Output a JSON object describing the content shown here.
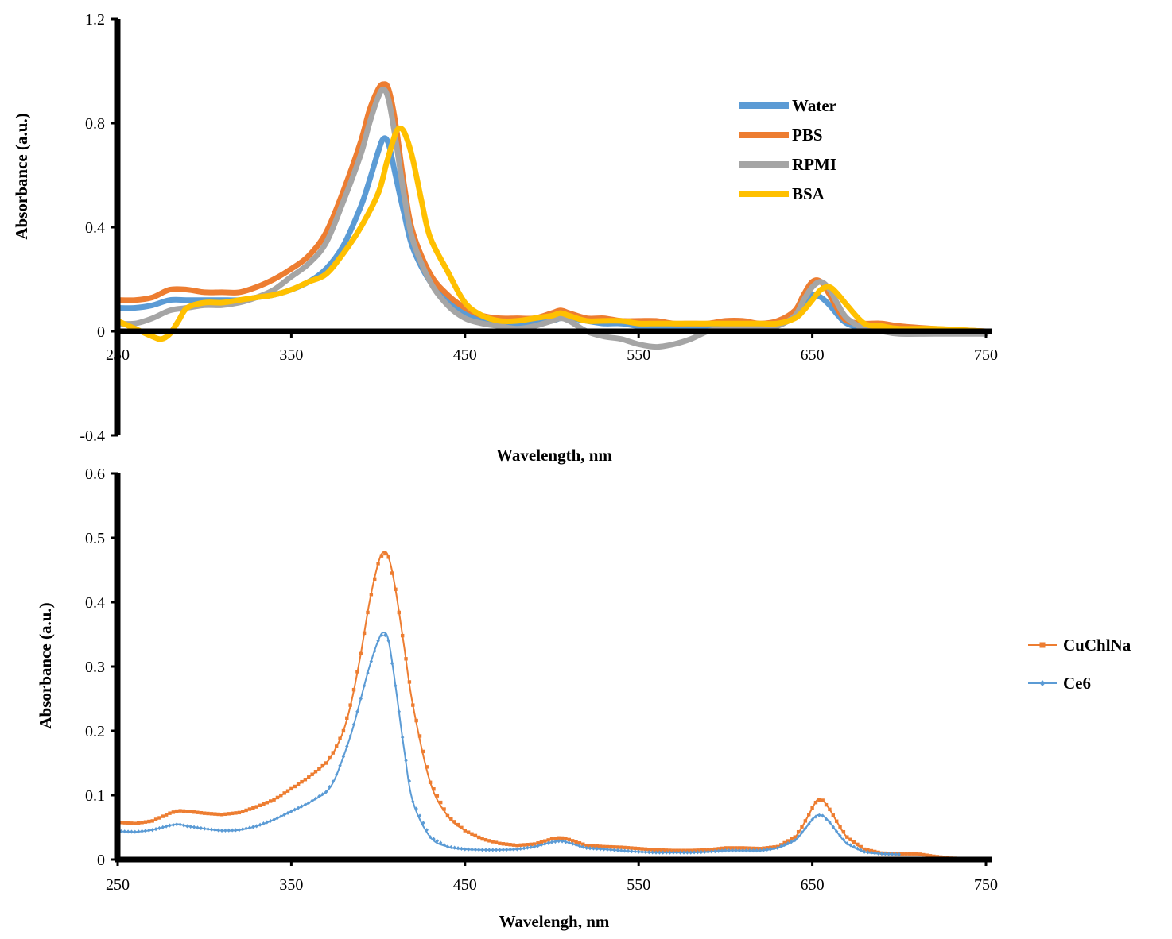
{
  "chart_data": [
    {
      "type": "line",
      "title": "",
      "xlabel": "Wavelength, nm",
      "ylabel": "Absorbance (a.u.)",
      "xlim": [
        250,
        750
      ],
      "ylim": [
        -0.4,
        1.2
      ],
      "xticks": [
        "250",
        "350",
        "450",
        "550",
        "650",
        "750"
      ],
      "yticks": [
        "1.2",
        "0.8",
        "0.4",
        "0",
        "-0.4"
      ],
      "grid": false,
      "legend_position": "top-right",
      "series": [
        {
          "name": "Water",
          "color": "#5B9BD5",
          "x": [
            250,
            260,
            270,
            280,
            290,
            300,
            310,
            320,
            330,
            340,
            350,
            360,
            370,
            380,
            390,
            395,
            400,
            403,
            406,
            410,
            415,
            420,
            430,
            440,
            450,
            460,
            470,
            480,
            490,
            500,
            505,
            510,
            520,
            530,
            540,
            550,
            560,
            570,
            580,
            590,
            600,
            610,
            620,
            630,
            640,
            645,
            650,
            655,
            660,
            665,
            670,
            680,
            690,
            700,
            720,
            750
          ],
          "y": [
            0.09,
            0.09,
            0.1,
            0.12,
            0.12,
            0.12,
            0.12,
            0.12,
            0.13,
            0.14,
            0.16,
            0.19,
            0.24,
            0.33,
            0.48,
            0.58,
            0.69,
            0.74,
            0.72,
            0.6,
            0.45,
            0.32,
            0.19,
            0.12,
            0.07,
            0.05,
            0.04,
            0.03,
            0.03,
            0.04,
            0.05,
            0.05,
            0.04,
            0.03,
            0.03,
            0.02,
            0.02,
            0.02,
            0.02,
            0.02,
            0.02,
            0.02,
            0.02,
            0.03,
            0.06,
            0.1,
            0.14,
            0.13,
            0.1,
            0.06,
            0.03,
            0.01,
            0.01,
            0.0,
            0.0,
            0.0
          ]
        },
        {
          "name": "PBS",
          "color": "#ED7D31",
          "x": [
            250,
            260,
            270,
            280,
            290,
            300,
            310,
            320,
            330,
            340,
            350,
            360,
            370,
            380,
            390,
            395,
            400,
            403,
            406,
            410,
            415,
            420,
            430,
            440,
            450,
            460,
            470,
            480,
            490,
            500,
            505,
            510,
            520,
            530,
            540,
            550,
            560,
            570,
            580,
            590,
            600,
            610,
            620,
            630,
            640,
            645,
            650,
            655,
            660,
            665,
            670,
            680,
            690,
            700,
            720,
            750
          ],
          "y": [
            0.12,
            0.12,
            0.13,
            0.16,
            0.16,
            0.15,
            0.15,
            0.15,
            0.17,
            0.2,
            0.24,
            0.29,
            0.38,
            0.54,
            0.73,
            0.85,
            0.93,
            0.95,
            0.93,
            0.8,
            0.56,
            0.38,
            0.22,
            0.14,
            0.09,
            0.06,
            0.05,
            0.05,
            0.05,
            0.07,
            0.08,
            0.07,
            0.05,
            0.05,
            0.04,
            0.04,
            0.04,
            0.03,
            0.03,
            0.03,
            0.04,
            0.04,
            0.03,
            0.04,
            0.08,
            0.14,
            0.19,
            0.19,
            0.14,
            0.08,
            0.04,
            0.03,
            0.03,
            0.02,
            0.01,
            0.0
          ]
        },
        {
          "name": "RPMI",
          "color": "#A5A5A5",
          "x": [
            250,
            260,
            270,
            280,
            290,
            300,
            310,
            320,
            330,
            340,
            350,
            360,
            370,
            380,
            390,
            395,
            400,
            403,
            406,
            410,
            415,
            420,
            430,
            440,
            450,
            460,
            470,
            480,
            490,
            500,
            505,
            510,
            520,
            530,
            540,
            550,
            560,
            570,
            580,
            590,
            600,
            610,
            620,
            630,
            640,
            645,
            650,
            655,
            660,
            665,
            670,
            680,
            690,
            700,
            720,
            750
          ],
          "y": [
            0.03,
            0.03,
            0.05,
            0.08,
            0.09,
            0.1,
            0.1,
            0.11,
            0.13,
            0.16,
            0.21,
            0.26,
            0.34,
            0.5,
            0.68,
            0.8,
            0.9,
            0.93,
            0.89,
            0.74,
            0.52,
            0.35,
            0.19,
            0.1,
            0.05,
            0.03,
            0.02,
            0.01,
            0.02,
            0.04,
            0.05,
            0.04,
            0.0,
            -0.02,
            -0.03,
            -0.05,
            -0.06,
            -0.05,
            -0.03,
            0.0,
            0.01,
            0.01,
            0.01,
            0.02,
            0.06,
            0.12,
            0.17,
            0.19,
            0.16,
            0.1,
            0.05,
            0.01,
            0.0,
            -0.01,
            -0.01,
            -0.01
          ]
        },
        {
          "name": "BSA",
          "color": "#FFC000",
          "x": [
            250,
            260,
            270,
            275,
            280,
            285,
            290,
            300,
            310,
            320,
            330,
            340,
            350,
            360,
            370,
            380,
            390,
            400,
            405,
            410,
            413,
            416,
            420,
            425,
            430,
            440,
            450,
            460,
            470,
            480,
            490,
            500,
            505,
            510,
            520,
            530,
            540,
            550,
            560,
            570,
            580,
            590,
            600,
            610,
            620,
            630,
            640,
            645,
            650,
            655,
            660,
            665,
            670,
            680,
            690,
            700,
            720,
            750
          ],
          "y": [
            0.04,
            0.01,
            -0.02,
            -0.03,
            -0.01,
            0.04,
            0.09,
            0.11,
            0.11,
            0.12,
            0.13,
            0.14,
            0.16,
            0.19,
            0.22,
            0.3,
            0.4,
            0.53,
            0.65,
            0.76,
            0.78,
            0.75,
            0.66,
            0.5,
            0.36,
            0.23,
            0.11,
            0.06,
            0.04,
            0.04,
            0.05,
            0.06,
            0.07,
            0.06,
            0.04,
            0.04,
            0.04,
            0.03,
            0.03,
            0.03,
            0.03,
            0.03,
            0.03,
            0.03,
            0.03,
            0.03,
            0.05,
            0.08,
            0.12,
            0.16,
            0.17,
            0.14,
            0.1,
            0.03,
            0.02,
            0.01,
            0.01,
            0.0
          ]
        }
      ]
    },
    {
      "type": "line",
      "title": "",
      "xlabel": "Wavelengh, nm",
      "ylabel": "Absorbance (a.u.)",
      "xlim": [
        250,
        750
      ],
      "ylim": [
        0,
        0.6
      ],
      "xticks": [
        "250",
        "350",
        "450",
        "550",
        "650",
        "750"
      ],
      "yticks": [
        "0.6",
        "0.5",
        "0.4",
        "0.3",
        "0.2",
        "0.1",
        "0"
      ],
      "grid": false,
      "legend_position": "right",
      "series": [
        {
          "name": "CuChlNa",
          "color": "#ED7D31",
          "marker": "square",
          "x": [
            250,
            260,
            270,
            280,
            285,
            290,
            300,
            310,
            320,
            330,
            340,
            350,
            360,
            370,
            375,
            380,
            385,
            390,
            395,
            400,
            403,
            406,
            410,
            415,
            420,
            430,
            440,
            450,
            460,
            470,
            480,
            490,
            500,
            505,
            510,
            520,
            530,
            540,
            550,
            560,
            570,
            580,
            590,
            600,
            610,
            620,
            630,
            640,
            645,
            650,
            653,
            656,
            660,
            665,
            670,
            680,
            690,
            700,
            710,
            720,
            730,
            740,
            750
          ],
          "y": [
            0.058,
            0.056,
            0.06,
            0.072,
            0.076,
            0.075,
            0.072,
            0.07,
            0.073,
            0.082,
            0.093,
            0.11,
            0.128,
            0.15,
            0.17,
            0.2,
            0.25,
            0.32,
            0.4,
            0.46,
            0.478,
            0.47,
            0.42,
            0.33,
            0.24,
            0.12,
            0.068,
            0.045,
            0.032,
            0.025,
            0.022,
            0.024,
            0.032,
            0.034,
            0.031,
            0.022,
            0.02,
            0.019,
            0.017,
            0.015,
            0.014,
            0.014,
            0.015,
            0.018,
            0.018,
            0.017,
            0.02,
            0.035,
            0.055,
            0.08,
            0.093,
            0.092,
            0.078,
            0.055,
            0.035,
            0.016,
            0.01,
            0.009,
            0.009,
            0.005,
            0.002,
            0.001,
            0.0
          ]
        },
        {
          "name": "Ce6",
          "color": "#5B9BD5",
          "marker": "diamond",
          "x": [
            250,
            260,
            270,
            280,
            285,
            290,
            300,
            310,
            320,
            330,
            340,
            350,
            360,
            370,
            375,
            380,
            385,
            390,
            395,
            400,
            403,
            406,
            410,
            415,
            420,
            430,
            440,
            450,
            460,
            470,
            480,
            490,
            500,
            505,
            510,
            520,
            530,
            540,
            550,
            560,
            570,
            580,
            590,
            600,
            610,
            620,
            630,
            640,
            645,
            650,
            653,
            656,
            660,
            665,
            670,
            680,
            690,
            700
          ],
          "y": [
            0.044,
            0.043,
            0.046,
            0.053,
            0.055,
            0.052,
            0.048,
            0.045,
            0.046,
            0.052,
            0.062,
            0.075,
            0.088,
            0.105,
            0.125,
            0.16,
            0.2,
            0.25,
            0.3,
            0.34,
            0.353,
            0.34,
            0.27,
            0.17,
            0.09,
            0.035,
            0.02,
            0.016,
            0.015,
            0.015,
            0.016,
            0.02,
            0.027,
            0.029,
            0.026,
            0.018,
            0.016,
            0.014,
            0.012,
            0.011,
            0.011,
            0.011,
            0.012,
            0.014,
            0.014,
            0.014,
            0.018,
            0.03,
            0.045,
            0.062,
            0.069,
            0.068,
            0.058,
            0.04,
            0.025,
            0.012,
            0.009,
            0.008
          ]
        }
      ]
    }
  ]
}
